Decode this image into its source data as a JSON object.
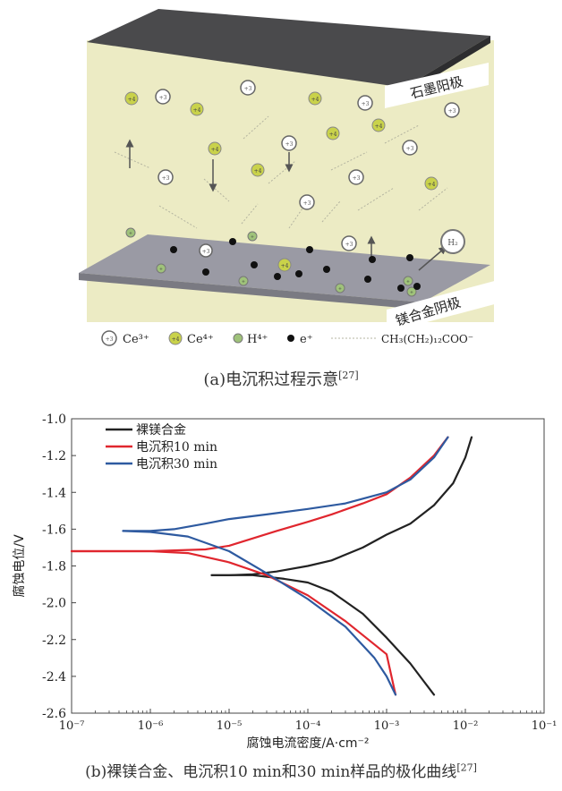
{
  "figure_a": {
    "anode_label": "石墨阳极",
    "cathode_label": "镁合金阴极",
    "species": {
      "ce3": "+3",
      "ce4": "+4",
      "h": "+",
      "h2": "H₂"
    },
    "legend": {
      "ce3": "Ce³⁺",
      "ce4": "Ce⁴⁺",
      "h": "H⁴⁺",
      "e": "e⁺",
      "ligand": "CH₃(CH₂)₁₂COO⁻"
    },
    "caption": "(a)电沉积过程示意",
    "caption_ref": "[27]",
    "colors": {
      "plate_top": "#4a4a4c",
      "solution": "#ecebc4",
      "cathode": "#9a9aa4",
      "ce4_fill": "#c9d24a"
    }
  },
  "chart_data": {
    "type": "line",
    "x_scale": "log",
    "xlim": [
      1e-07,
      0.1
    ],
    "ylim": [
      -2.6,
      -1.0
    ],
    "x_ticks": [
      1e-07,
      1e-06,
      1e-05,
      0.0001,
      0.001,
      0.01,
      0.1
    ],
    "x_tick_labels": [
      "10⁻⁷",
      "10⁻⁶",
      "10⁻⁵",
      "10⁻⁴",
      "10⁻³",
      "10⁻²",
      "10⁻¹"
    ],
    "y_ticks": [
      -1.0,
      -1.2,
      -1.4,
      -1.6,
      -1.8,
      -2.0,
      -2.2,
      -2.4,
      -2.6
    ],
    "y_tick_labels": [
      "-1.0",
      "-1.2",
      "-1.4",
      "-1.6",
      "-1.8",
      "-2.0",
      "-2.2",
      "-2.4",
      "-2.6"
    ],
    "xlabel": "腐蚀电流密度/A·cm⁻²",
    "ylabel": "腐蚀电位/V",
    "legend_position": "top-left",
    "grid": false,
    "series": [
      {
        "name": "裸镁合金",
        "color": "#222222",
        "anodic": [
          [
            6e-06,
            -1.85
          ],
          [
            1e-05,
            -1.85
          ],
          [
            2e-05,
            -1.845
          ],
          [
            4e-05,
            -1.83
          ],
          [
            0.0001,
            -1.8
          ],
          [
            0.0002,
            -1.77
          ],
          [
            0.0005,
            -1.7
          ],
          [
            0.001,
            -1.63
          ],
          [
            0.002,
            -1.57
          ],
          [
            0.004,
            -1.47
          ],
          [
            0.007,
            -1.35
          ],
          [
            0.01,
            -1.21
          ],
          [
            0.012,
            -1.1
          ]
        ],
        "cathodic": [
          [
            6e-06,
            -1.85
          ],
          [
            1e-05,
            -1.85
          ],
          [
            2e-05,
            -1.85
          ],
          [
            5e-05,
            -1.87
          ],
          [
            0.0001,
            -1.89
          ],
          [
            0.0002,
            -1.94
          ],
          [
            0.0005,
            -2.06
          ],
          [
            0.001,
            -2.19
          ],
          [
            0.002,
            -2.33
          ],
          [
            0.003,
            -2.43
          ],
          [
            0.004,
            -2.5
          ]
        ]
      },
      {
        "name": "电沉积10 min",
        "color": "#e0262e",
        "anodic": [
          [
            1e-07,
            -1.72
          ],
          [
            1e-06,
            -1.72
          ],
          [
            5e-06,
            -1.71
          ],
          [
            1e-05,
            -1.69
          ],
          [
            2e-05,
            -1.65
          ],
          [
            4e-05,
            -1.61
          ],
          [
            0.0001,
            -1.56
          ],
          [
            0.0002,
            -1.52
          ],
          [
            0.0005,
            -1.46
          ],
          [
            0.001,
            -1.41
          ],
          [
            0.002,
            -1.32
          ],
          [
            0.004,
            -1.2
          ],
          [
            0.006,
            -1.1
          ]
        ],
        "cathodic": [
          [
            1e-07,
            -1.72
          ],
          [
            1e-06,
            -1.72
          ],
          [
            3e-06,
            -1.73
          ],
          [
            1e-05,
            -1.78
          ],
          [
            3e-05,
            -1.85
          ],
          [
            0.0001,
            -1.96
          ],
          [
            0.0003,
            -2.1
          ],
          [
            0.001,
            -2.28
          ],
          [
            0.0013,
            -2.5
          ]
        ]
      },
      {
        "name": "电沉积30 min",
        "color": "#2e5aa0",
        "anodic": [
          [
            4.5e-07,
            -1.61
          ],
          [
            1e-06,
            -1.61
          ],
          [
            2e-06,
            -1.6
          ],
          [
            5e-06,
            -1.57
          ],
          [
            1e-05,
            -1.545
          ],
          [
            3e-05,
            -1.52
          ],
          [
            0.0001,
            -1.49
          ],
          [
            0.0003,
            -1.46
          ],
          [
            0.001,
            -1.4
          ],
          [
            0.002,
            -1.33
          ],
          [
            0.004,
            -1.21
          ],
          [
            0.006,
            -1.1
          ]
        ],
        "cathodic": [
          [
            4.5e-07,
            -1.61
          ],
          [
            1e-06,
            -1.615
          ],
          [
            3e-06,
            -1.64
          ],
          [
            1e-05,
            -1.72
          ],
          [
            3e-05,
            -1.84
          ],
          [
            0.0001,
            -1.98
          ],
          [
            0.0003,
            -2.13
          ],
          [
            0.0007,
            -2.3
          ],
          [
            0.001,
            -2.4
          ],
          [
            0.0013,
            -2.5
          ]
        ]
      }
    ]
  },
  "figure_b": {
    "caption": "(b)裸镁合金、电沉积10 min和30 min样品的极化曲线",
    "caption_ref": "[27]"
  }
}
